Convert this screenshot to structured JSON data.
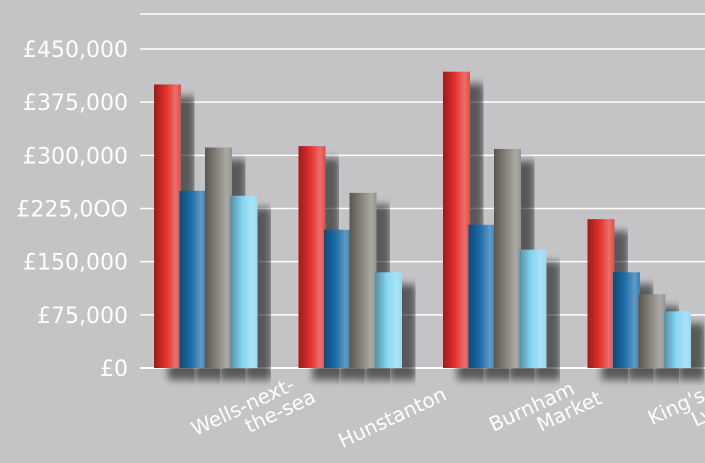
{
  "chart_data": {
    "type": "bar",
    "title": "",
    "xlabel": "",
    "ylabel": "",
    "ylim": [
      0,
      450000
    ],
    "y_ticks": [
      {
        "value": 0,
        "label": "£0"
      },
      {
        "value": 75000,
        "label": "£75,000"
      },
      {
        "value": 150000,
        "label": "£150,000"
      },
      {
        "value": 225000,
        "label": "£225,0OO"
      },
      {
        "value": 300000,
        "label": "£300,000"
      },
      {
        "value": 375000,
        "label": "£375,000"
      },
      {
        "value": 450000,
        "label": "£450,000"
      }
    ],
    "categories": [
      {
        "lines": [
          "Wells-next-",
          "the-sea"
        ]
      },
      {
        "lines": [
          "Hunstanton"
        ]
      },
      {
        "lines": [
          "Burnham",
          "Market"
        ]
      },
      {
        "lines": [
          "King's",
          "Lynn"
        ]
      }
    ],
    "series": [
      {
        "color": "#e4302c",
        "values": [
          400000,
          313000,
          418000,
          210000
        ]
      },
      {
        "color": "#1d6eab",
        "values": [
          250000,
          195000,
          202000,
          135000
        ]
      },
      {
        "color": "#86847b",
        "values": [
          311000,
          247000,
          309000,
          104000
        ]
      },
      {
        "color": "#86d6f4",
        "values": [
          243000,
          135000,
          167000,
          80000
        ]
      }
    ],
    "grid": true,
    "legend": "none"
  }
}
